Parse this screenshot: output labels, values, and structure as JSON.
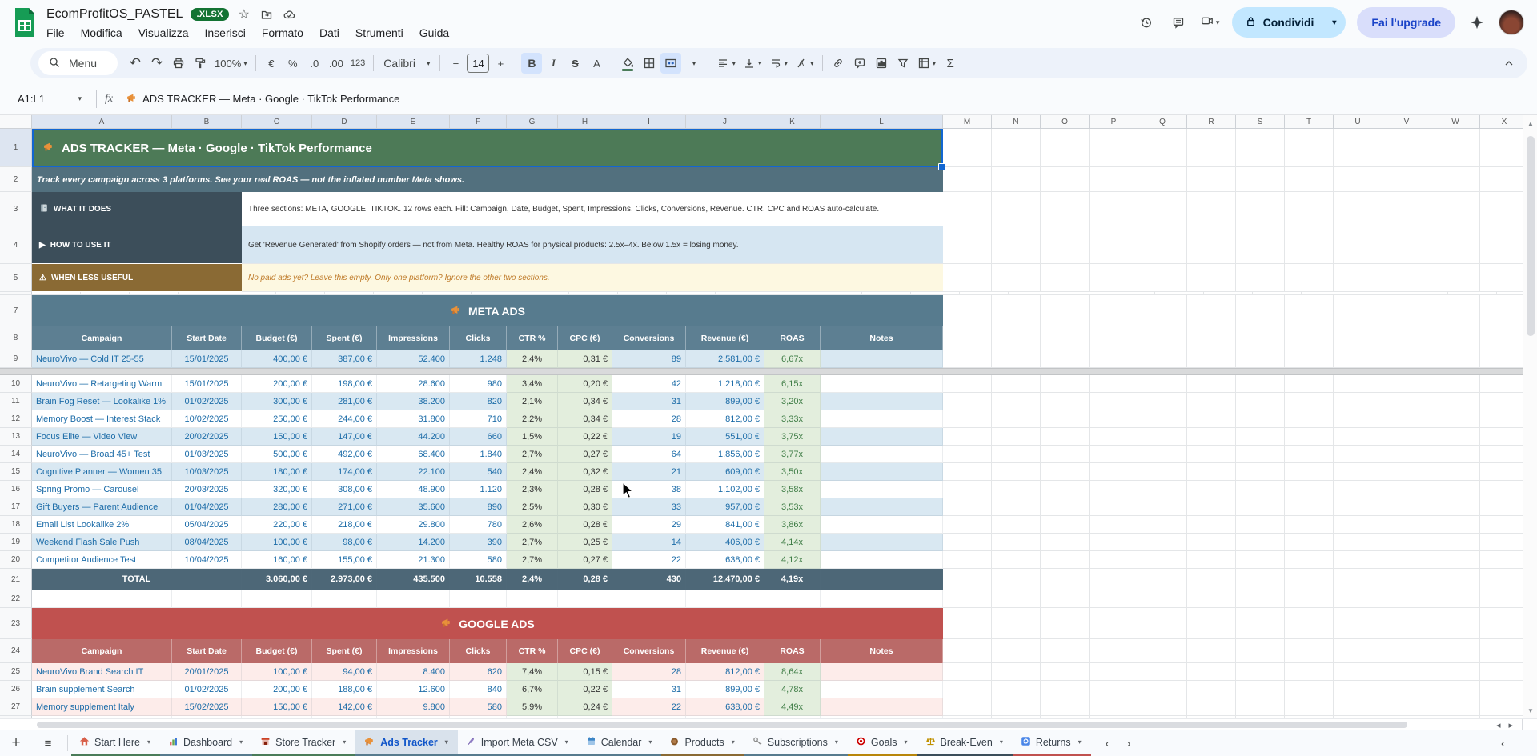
{
  "window": {
    "doc_title": "EcomProfitOS_PASTEL",
    "file_badge": ".XLSX",
    "menus": [
      "File",
      "Modifica",
      "Visualizza",
      "Inserisci",
      "Formato",
      "Dati",
      "Strumenti",
      "Guida"
    ],
    "share_button": "Condividi",
    "upgrade_button": "Fai l'upgrade"
  },
  "toolbar": {
    "search_label": "Menu",
    "zoom_value": "100%",
    "currency": "€",
    "percent": "%",
    "dec_less": ".0",
    "dec_more": ".00",
    "num_fmt": "123",
    "font_name": "Calibri",
    "font_size": "14",
    "bold": "B",
    "italic": "I",
    "strike": "S",
    "text_color": "A",
    "minus": "−",
    "plus": "+",
    "sum": "Σ"
  },
  "formula_bar": {
    "name_box": "A1:L1",
    "fx": "fx",
    "value": "ADS TRACKER — Meta · Google · TikTok Performance"
  },
  "grid": {
    "col_letters": [
      "A",
      "B",
      "C",
      "D",
      "E",
      "F",
      "G",
      "H",
      "I",
      "J",
      "K",
      "L",
      "M",
      "N",
      "O",
      "P",
      "Q",
      "R",
      "S",
      "T",
      "U",
      "V",
      "W",
      "X"
    ],
    "selected_cols_count": 12,
    "row_numbers": [
      "1",
      "2",
      "3",
      "4",
      "5",
      "7",
      "8",
      "9",
      "10",
      "11",
      "12",
      "13",
      "14",
      "15",
      "16",
      "17",
      "18",
      "19",
      "20",
      "21",
      "22",
      "23",
      "24",
      "25",
      "26",
      "27"
    ]
  },
  "colors": {
    "title_green": "#4d7a57",
    "subtitle_slate": "#52707e",
    "label_dark": "#3c4e5a",
    "label_brown": "#8a6a34",
    "info_white": "#ffffff",
    "info_blue": "#d6e6f2",
    "info_yellow": "#fdf8e1",
    "meta_banner": "#577b8e",
    "meta_header": "#5d7f92",
    "total_bg": "#4d6777",
    "google_banner": "#c0514f",
    "google_header": "#ba6a68",
    "row_blue": "#d9e8f2",
    "row_white": "#ffffff",
    "row_pink": "#fdecea",
    "cell_green": "#e3eedd"
  },
  "sheet": {
    "title": "ADS TRACKER — Meta · Google · TikTok Performance",
    "subtitle": "Track every campaign across 3 platforms. See your real ROAS — not the inflated number Meta shows.",
    "info_rows": [
      {
        "label": "WHAT IT DOES",
        "text": "Three sections: META, GOOGLE, TIKTOK. 12 rows each. Fill: Campaign, Date, Budget, Spent, Impressions, Clicks, Conversions, Revenue. CTR, CPC and ROAS auto-calculate."
      },
      {
        "label": "HOW TO USE IT",
        "text": "Get 'Revenue Generated' from Shopify orders — not from Meta. Healthy ROAS for physical products: 2.5x–4x. Below 1.5x = losing money."
      },
      {
        "label": "WHEN LESS USEFUL",
        "text": "No paid ads yet? Leave this empty. Only one platform? Ignore the other two sections."
      }
    ],
    "columns": [
      "Campaign",
      "Start Date",
      "Budget (€)",
      "Spent (€)",
      "Impressions",
      "Clicks",
      "CTR %",
      "CPC (€)",
      "Conversions",
      "Revenue (€)",
      "ROAS",
      "Notes"
    ],
    "sections": [
      {
        "title": "META ADS",
        "rows": [
          [
            "NeuroVivo — Cold IT 25-55",
            "15/01/2025",
            "400,00 €",
            "387,00 €",
            "52.400",
            "1.248",
            "2,4%",
            "0,31 €",
            "89",
            "2.581,00 €",
            "6,67x",
            ""
          ],
          [
            "NeuroVivo — Retargeting Warm",
            "15/01/2025",
            "200,00 €",
            "198,00 €",
            "28.600",
            "980",
            "3,4%",
            "0,20 €",
            "42",
            "1.218,00 €",
            "6,15x",
            ""
          ],
          [
            "Brain Fog Reset — Lookalike 1%",
            "01/02/2025",
            "300,00 €",
            "281,00 €",
            "38.200",
            "820",
            "2,1%",
            "0,34 €",
            "31",
            "899,00 €",
            "3,20x",
            ""
          ],
          [
            "Memory Boost — Interest Stack",
            "10/02/2025",
            "250,00 €",
            "244,00 €",
            "31.800",
            "710",
            "2,2%",
            "0,34 €",
            "28",
            "812,00 €",
            "3,33x",
            ""
          ],
          [
            "Focus Elite — Video View",
            "20/02/2025",
            "150,00 €",
            "147,00 €",
            "44.200",
            "660",
            "1,5%",
            "0,22 €",
            "19",
            "551,00 €",
            "3,75x",
            ""
          ],
          [
            "NeuroVivo — Broad 45+ Test",
            "01/03/2025",
            "500,00 €",
            "492,00 €",
            "68.400",
            "1.840",
            "2,7%",
            "0,27 €",
            "64",
            "1.856,00 €",
            "3,77x",
            ""
          ],
          [
            "Cognitive Planner — Women 35",
            "10/03/2025",
            "180,00 €",
            "174,00 €",
            "22.100",
            "540",
            "2,4%",
            "0,32 €",
            "21",
            "609,00 €",
            "3,50x",
            ""
          ],
          [
            "Spring Promo — Carousel",
            "20/03/2025",
            "320,00 €",
            "308,00 €",
            "48.900",
            "1.120",
            "2,3%",
            "0,28 €",
            "38",
            "1.102,00 €",
            "3,58x",
            ""
          ],
          [
            "Gift Buyers — Parent Audience",
            "01/04/2025",
            "280,00 €",
            "271,00 €",
            "35.600",
            "890",
            "2,5%",
            "0,30 €",
            "33",
            "957,00 €",
            "3,53x",
            ""
          ],
          [
            "Email List Lookalike 2%",
            "05/04/2025",
            "220,00 €",
            "218,00 €",
            "29.800",
            "780",
            "2,6%",
            "0,28 €",
            "29",
            "841,00 €",
            "3,86x",
            ""
          ],
          [
            "Weekend Flash Sale Push",
            "08/04/2025",
            "100,00 €",
            "98,00 €",
            "14.200",
            "390",
            "2,7%",
            "0,25 €",
            "14",
            "406,00 €",
            "4,14x",
            ""
          ],
          [
            "Competitor Audience Test",
            "10/04/2025",
            "160,00 €",
            "155,00 €",
            "21.300",
            "580",
            "2,7%",
            "0,27 €",
            "22",
            "638,00 €",
            "4,12x",
            ""
          ]
        ],
        "total": [
          "TOTAL",
          "",
          "3.060,00 €",
          "2.973,00 €",
          "435.500",
          "10.558",
          "2,4%",
          "0,28 €",
          "430",
          "12.470,00 €",
          "4,19x",
          ""
        ]
      },
      {
        "title": "GOOGLE ADS",
        "rows": [
          [
            "NeuroVivo Brand Search IT",
            "20/01/2025",
            "100,00 €",
            "94,00 €",
            "8.400",
            "620",
            "7,4%",
            "0,15 €",
            "28",
            "812,00 €",
            "8,64x",
            ""
          ],
          [
            "Brain supplement Search",
            "01/02/2025",
            "200,00 €",
            "188,00 €",
            "12.600",
            "840",
            "6,7%",
            "0,22 €",
            "31",
            "899,00 €",
            "4,78x",
            ""
          ],
          [
            "Memory supplement Italy",
            "15/02/2025",
            "150,00 €",
            "142,00 €",
            "9.800",
            "580",
            "5,9%",
            "0,24 €",
            "22",
            "638,00 €",
            "4,49x",
            ""
          ]
        ]
      }
    ]
  },
  "tabs": [
    {
      "icon": "house",
      "label": "Start Here",
      "color": "#4a7c59",
      "active": false
    },
    {
      "icon": "barchart",
      "label": "Dashboard",
      "color": "#577b8e",
      "active": false
    },
    {
      "icon": "store",
      "label": "Store Tracker",
      "color": "#4a7c59",
      "active": false
    },
    {
      "icon": "megaphone",
      "label": "Ads Tracker",
      "color": "#577b8e",
      "active": true
    },
    {
      "icon": "syringe",
      "label": "Import Meta CSV",
      "color": "#577b8e",
      "active": false
    },
    {
      "icon": "calendar",
      "label": "Calendar",
      "color": "#577b8e",
      "active": false
    },
    {
      "icon": "nut",
      "label": "Products",
      "color": "#8a6a34",
      "active": false
    },
    {
      "icon": "key",
      "label": "Subscriptions",
      "color": "#577b8e",
      "active": false
    },
    {
      "icon": "target",
      "label": "Goals",
      "color": "#b8860b",
      "active": false
    },
    {
      "icon": "scale",
      "label": "Break-Even",
      "color": "#3c4e5a",
      "active": false
    },
    {
      "icon": "refresh",
      "label": "Returns",
      "color": "#c0514f",
      "active": false
    }
  ]
}
